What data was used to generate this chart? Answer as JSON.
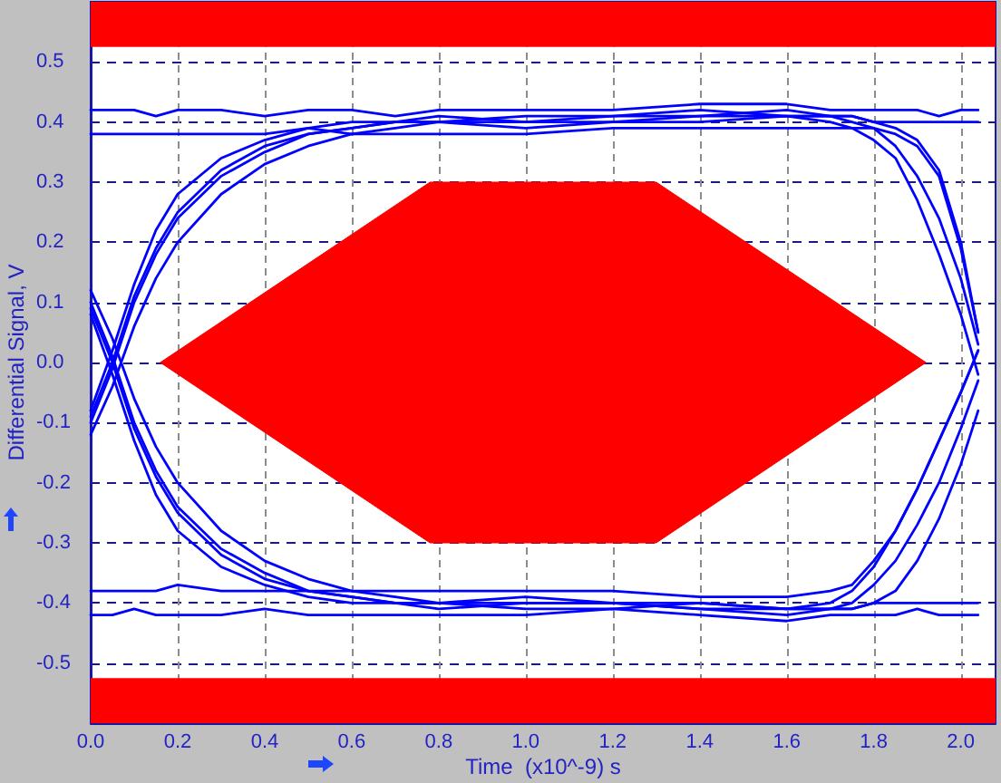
{
  "chart_data": {
    "type": "line",
    "xlabel": "Time  (x10^-9) s",
    "ylabel": "Differential Signal, V",
    "xlim": [
      0,
      2.08
    ],
    "ylim": [
      -0.6,
      0.6
    ],
    "xticks": [
      {
        "value": 0,
        "label": "0.0"
      },
      0.2,
      0.4,
      0.6,
      0.8,
      {
        "value": 1,
        "label": "1.0"
      },
      1.2,
      1.4,
      1.6,
      1.8,
      {
        "value": 2,
        "label": "2.0"
      }
    ],
    "yticks": [
      -0.5,
      -0.4,
      -0.3,
      -0.2,
      -0.1,
      {
        "value": 0,
        "label": "0.0"
      },
      0.1,
      0.2,
      0.3,
      0.4,
      0.5
    ],
    "grid": true,
    "marker": "none",
    "line_style": "solid",
    "bands": [
      {
        "axis": "y",
        "from": 0.525,
        "to": 0.6,
        "color": "#ff0000"
      },
      {
        "axis": "y",
        "from": -0.6,
        "to": -0.525,
        "color": "#ff0000"
      }
    ],
    "x": [
      0,
      0.05,
      0.1,
      0.15,
      0.2,
      0.3,
      0.4,
      0.5,
      0.6,
      0.7,
      0.8,
      1.0,
      1.2,
      1.4,
      1.6,
      1.7,
      1.75,
      1.8,
      1.85,
      1.9,
      1.95,
      2.0,
      2.04
    ],
    "series": [
      {
        "type": "area",
        "color": "#ff0000",
        "x": [
          0.16,
          0.78,
          1.3,
          1.92,
          1.3,
          0.78,
          0.16
        ],
        "values": [
          0,
          0.3,
          0.3,
          0,
          -0.3,
          -0.3,
          0
        ]
      },
      {
        "color": "#0000ff",
        "values": [
          -0.08,
          0.02,
          0.13,
          0.22,
          0.28,
          0.34,
          0.37,
          0.39,
          0.4,
          0.4,
          0.4,
          0.4,
          0.41,
          0.41,
          0.41,
          0.4,
          0.39,
          0.37,
          0.34,
          0.27,
          0.18,
          0.08,
          -0.02
        ]
      },
      {
        "color": "#0000ff",
        "values": [
          -0.12,
          -0.04,
          0.06,
          0.14,
          0.2,
          0.28,
          0.33,
          0.36,
          0.38,
          0.39,
          0.4,
          0.39,
          0.4,
          0.4,
          0.41,
          0.41,
          0.41,
          0.4,
          0.39,
          0.37,
          0.32,
          0.2,
          0.05
        ]
      },
      {
        "color": "#0000ff",
        "values": [
          0.08,
          -0.02,
          -0.13,
          -0.22,
          -0.28,
          -0.34,
          -0.37,
          -0.39,
          -0.4,
          -0.4,
          -0.4,
          -0.4,
          -0.4,
          -0.41,
          -0.41,
          -0.4,
          -0.38,
          -0.34,
          -0.28,
          -0.21,
          -0.13,
          -0.05,
          0.02
        ]
      },
      {
        "color": "#0000ff",
        "values": [
          0.12,
          0.04,
          -0.06,
          -0.14,
          -0.2,
          -0.28,
          -0.33,
          -0.36,
          -0.38,
          -0.39,
          -0.4,
          -0.39,
          -0.4,
          -0.4,
          -0.41,
          -0.41,
          -0.41,
          -0.4,
          -0.38,
          -0.33,
          -0.26,
          -0.17,
          -0.08
        ]
      },
      {
        "color": "#0000ff",
        "values": [
          0.42,
          0.42,
          0.42,
          0.41,
          0.42,
          0.42,
          0.41,
          0.42,
          0.42,
          0.41,
          0.42,
          0.42,
          0.42,
          0.43,
          0.43,
          0.42,
          0.42,
          0.42,
          0.42,
          0.42,
          0.41,
          0.42,
          0.42
        ]
      },
      {
        "color": "#0000ff",
        "values": [
          -0.42,
          -0.42,
          -0.41,
          -0.42,
          -0.42,
          -0.42,
          -0.41,
          -0.42,
          -0.42,
          -0.42,
          -0.42,
          -0.42,
          -0.41,
          -0.42,
          -0.43,
          -0.42,
          -0.42,
          -0.42,
          -0.42,
          -0.41,
          -0.42,
          -0.42,
          -0.42
        ]
      },
      {
        "color": "#0000ff",
        "values": [
          0.38,
          0.38,
          0.38,
          0.38,
          0.38,
          0.38,
          0.38,
          0.39,
          0.38,
          0.38,
          0.38,
          0.38,
          0.39,
          0.39,
          0.39,
          0.39,
          0.39,
          0.39,
          0.38,
          0.36,
          0.31,
          0.19,
          0.05
        ]
      },
      {
        "color": "#0000ff",
        "values": [
          -0.38,
          -0.38,
          -0.38,
          -0.38,
          -0.37,
          -0.38,
          -0.38,
          -0.38,
          -0.38,
          -0.38,
          -0.38,
          -0.38,
          -0.38,
          -0.39,
          -0.39,
          -0.38,
          -0.37,
          -0.33,
          -0.28,
          -0.21,
          -0.13,
          -0.05,
          0.02
        ]
      },
      {
        "color": "#0000ff",
        "values": [
          -0.1,
          -0.01,
          0.1,
          0.18,
          0.24,
          0.31,
          0.35,
          0.38,
          0.39,
          0.4,
          0.41,
          0.4,
          0.4,
          0.41,
          0.42,
          0.41,
          0.41,
          0.4,
          0.4,
          0.4,
          0.4,
          0.4,
          0.4
        ]
      },
      {
        "color": "#0000ff",
        "values": [
          0.1,
          0.01,
          -0.1,
          -0.18,
          -0.24,
          -0.31,
          -0.35,
          -0.38,
          -0.39,
          -0.4,
          -0.41,
          -0.4,
          -0.4,
          -0.41,
          -0.42,
          -0.41,
          -0.41,
          -0.4,
          -0.4,
          -0.4,
          -0.4,
          -0.4,
          -0.4
        ]
      },
      {
        "color": "#0000ff",
        "values": [
          -0.09,
          0.0,
          0.11,
          0.19,
          0.25,
          0.32,
          0.36,
          0.38,
          0.39,
          0.4,
          0.4,
          0.41,
          0.41,
          0.42,
          0.41,
          0.41,
          0.4,
          0.39,
          0.36,
          0.31,
          0.24,
          0.14,
          0.03
        ]
      },
      {
        "color": "#0000ff",
        "values": [
          0.09,
          0.0,
          -0.11,
          -0.19,
          -0.25,
          -0.32,
          -0.36,
          -0.38,
          -0.39,
          -0.4,
          -0.4,
          -0.41,
          -0.41,
          -0.4,
          -0.41,
          -0.41,
          -0.4,
          -0.37,
          -0.33,
          -0.27,
          -0.2,
          -0.11,
          -0.03
        ]
      }
    ]
  }
}
